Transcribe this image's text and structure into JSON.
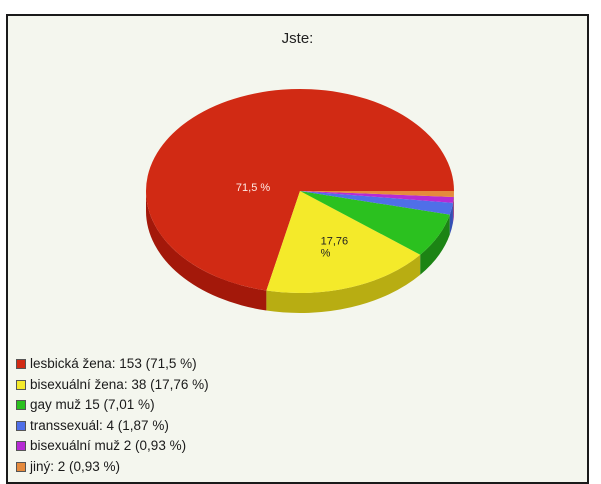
{
  "chart_data": {
    "type": "pie",
    "title": "Jste:",
    "slices": [
      {
        "label": "lesbická žena",
        "count": 153,
        "percent": 71.5,
        "percent_text": "71,5 %",
        "legend": "lesbická žena: 153 (71,5 %)",
        "color": "#d12a14",
        "side": "#a3180a"
      },
      {
        "label": "bisexuální žena",
        "count": 38,
        "percent": 17.76,
        "percent_text": "17,76 %",
        "legend": "bisexuální žena: 38 (17,76 %)",
        "color": "#f4ea2a",
        "side": "#b8ad12"
      },
      {
        "label": "gay muž",
        "count": 15,
        "percent": 7.01,
        "percent_text": "",
        "legend": "gay muž 15 (7,01 %)",
        "color": "#2bc11f",
        "side": "#1c8414"
      },
      {
        "label": "transsexuál",
        "count": 4,
        "percent": 1.87,
        "percent_text": "",
        "legend": "transsexuál: 4 (1,87 %)",
        "color": "#4f6fe8",
        "side": "#3350b4"
      },
      {
        "label": "bisexuální muž",
        "count": 2,
        "percent": 0.93,
        "percent_text": "",
        "legend": "bisexuální muž 2 (0,93 %)",
        "color": "#b62bd4",
        "side": "#801e96"
      },
      {
        "label": "jiný",
        "count": 2,
        "percent": 0.93,
        "percent_text": "",
        "legend": "jiný: 2 (0,93 %)",
        "color": "#e58a3c",
        "side": "#b0642a"
      }
    ],
    "legend_position": "bottom-left"
  }
}
